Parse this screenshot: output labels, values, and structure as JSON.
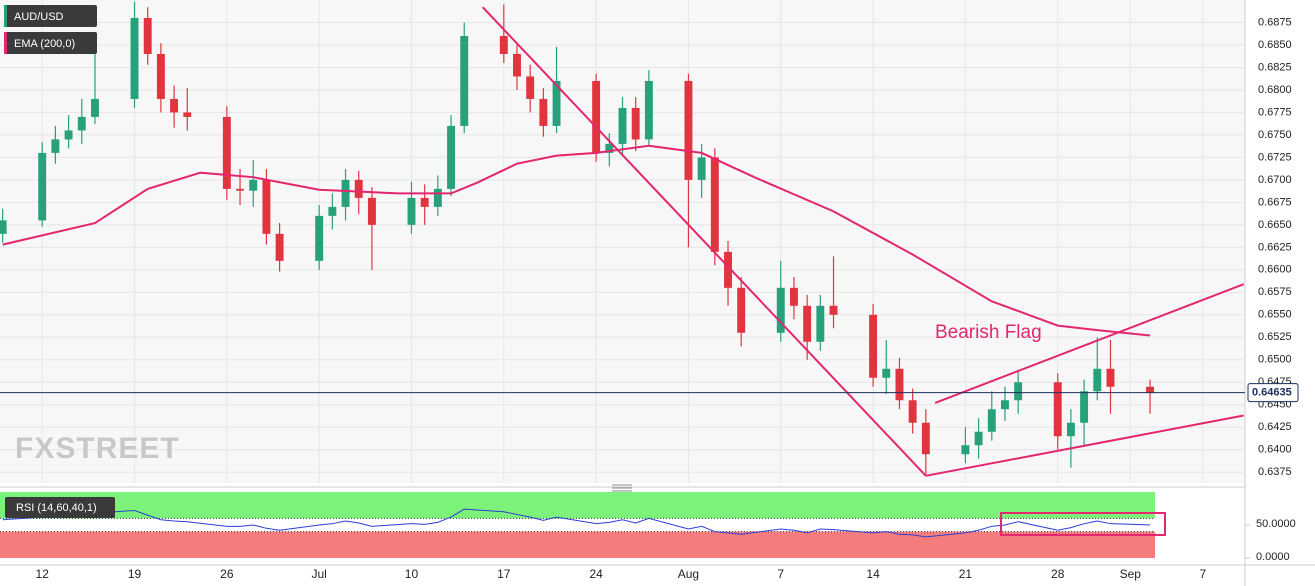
{
  "chart_data": [
    {
      "type": "candlestick",
      "title": "AUD/USD",
      "x": [
        -3,
        0,
        1,
        2,
        3,
        4,
        7,
        8,
        9,
        10,
        11,
        14,
        15,
        16,
        17,
        18,
        21,
        22,
        23,
        24,
        25,
        28,
        29,
        30,
        31,
        32,
        35,
        36,
        37,
        38,
        39,
        42,
        43,
        44,
        45,
        46,
        49,
        50,
        51,
        52,
        53,
        56,
        57,
        58,
        59,
        60,
        63,
        64,
        65,
        66,
        67,
        70,
        71,
        72,
        73,
        74,
        77,
        78,
        79,
        80,
        81,
        84
      ],
      "open": [
        0.664,
        0.6655,
        0.673,
        0.6745,
        0.6755,
        0.677,
        0.679,
        0.688,
        0.684,
        0.679,
        0.6775,
        0.677,
        0.669,
        0.6688,
        0.67,
        0.664,
        0.661,
        0.666,
        0.667,
        0.67,
        0.668,
        0.665,
        0.668,
        0.667,
        0.669,
        0.676,
        0.686,
        0.684,
        0.6815,
        0.679,
        0.676,
        0.681,
        0.673,
        0.674,
        0.678,
        0.6745,
        0.681,
        0.67,
        0.6725,
        0.662,
        0.658,
        0.653,
        0.658,
        0.656,
        0.652,
        0.656,
        0.655,
        0.648,
        0.649,
        0.6455,
        0.643,
        0.6395,
        0.6405,
        0.642,
        0.6445,
        0.6455,
        0.6475,
        0.6415,
        0.643,
        0.6465,
        0.649,
        0.647
      ],
      "high": [
        0.6668,
        0.6742,
        0.676,
        0.6772,
        0.679,
        0.685,
        0.6898,
        0.6892,
        0.6852,
        0.6805,
        0.6802,
        0.6782,
        0.6712,
        0.6722,
        0.6712,
        0.6652,
        0.6672,
        0.6685,
        0.6712,
        0.671,
        0.6692,
        0.6698,
        0.6695,
        0.6705,
        0.6772,
        0.6875,
        0.6895,
        0.685,
        0.6828,
        0.6802,
        0.6848,
        0.6818,
        0.6752,
        0.6792,
        0.6792,
        0.6822,
        0.6818,
        0.674,
        0.6735,
        0.6632,
        0.6592,
        0.661,
        0.6592,
        0.6572,
        0.6572,
        0.6615,
        0.6562,
        0.6522,
        0.6502,
        0.6468,
        0.6445,
        0.6425,
        0.6435,
        0.6465,
        0.647,
        0.6488,
        0.6485,
        0.6445,
        0.6478,
        0.6525,
        0.6522,
        0.6478
      ],
      "low": [
        0.663,
        0.6648,
        0.6718,
        0.6735,
        0.674,
        0.6762,
        0.678,
        0.6828,
        0.6775,
        0.6758,
        0.6755,
        0.6678,
        0.6672,
        0.667,
        0.6628,
        0.6598,
        0.66,
        0.6645,
        0.6655,
        0.6662,
        0.66,
        0.664,
        0.665,
        0.666,
        0.6682,
        0.6752,
        0.683,
        0.68,
        0.6775,
        0.6748,
        0.6752,
        0.672,
        0.6715,
        0.6728,
        0.6732,
        0.6738,
        0.6625,
        0.668,
        0.6605,
        0.656,
        0.6515,
        0.652,
        0.6545,
        0.65,
        0.651,
        0.6535,
        0.647,
        0.6462,
        0.6445,
        0.6418,
        0.6372,
        0.6385,
        0.639,
        0.641,
        0.6432,
        0.644,
        0.64,
        0.638,
        0.6405,
        0.6455,
        0.644,
        0.644
      ],
      "close": [
        0.6655,
        0.673,
        0.6745,
        0.6755,
        0.677,
        0.679,
        0.688,
        0.684,
        0.679,
        0.6775,
        0.677,
        0.669,
        0.6688,
        0.67,
        0.664,
        0.661,
        0.666,
        0.667,
        0.67,
        0.668,
        0.665,
        0.668,
        0.667,
        0.669,
        0.676,
        0.686,
        0.684,
        0.6815,
        0.679,
        0.676,
        0.681,
        0.673,
        0.674,
        0.678,
        0.6745,
        0.681,
        0.67,
        0.6725,
        0.662,
        0.658,
        0.653,
        0.658,
        0.656,
        0.652,
        0.656,
        0.655,
        0.648,
        0.649,
        0.6455,
        0.643,
        0.6395,
        0.6405,
        0.642,
        0.6445,
        0.6455,
        0.6475,
        0.6415,
        0.643,
        0.6465,
        0.649,
        0.647,
        0.6463
      ],
      "up_color": "#26a17b",
      "down_color": "#e2343f",
      "overlay": {
        "name": "EMA (200,0)",
        "color": "#e3266f",
        "x": [
          -3,
          4,
          8,
          12,
          16,
          21,
          27,
          31,
          33,
          36,
          39,
          42,
          46,
          50,
          54,
          60,
          66,
          72,
          77,
          80,
          84
        ],
        "values": [
          0.6628,
          0.6652,
          0.669,
          0.6708,
          0.6703,
          0.6689,
          0.6685,
          0.6685,
          0.6697,
          0.6718,
          0.6727,
          0.673,
          0.6738,
          0.673,
          0.6703,
          0.6665,
          0.6617,
          0.6565,
          0.6538,
          0.6533,
          0.6527
        ]
      },
      "last_price": 0.64635,
      "annotations": {
        "text": "Bearish Flag",
        "color": "#e3266f",
        "trendlines": [
          {
            "x": [
              33.4,
              67
            ],
            "y": [
              0.6892,
              0.6371
            ]
          },
          {
            "x": [
              67.7,
              91.1
            ],
            "y": [
              0.6452,
              0.6584
            ]
          },
          {
            "x": [
              67,
              91.1
            ],
            "y": [
              0.6371,
              0.6438
            ]
          }
        ]
      },
      "watermark": "FXSTREET",
      "xlim": [
        -3.2,
        91.2
      ],
      "ylim": [
        0.6363,
        0.69
      ],
      "xticks": [
        {
          "value": 0,
          "label": "12"
        },
        {
          "value": 7,
          "label": "19"
        },
        {
          "value": 14,
          "label": "26"
        },
        {
          "value": 21,
          "label": "Jul"
        },
        {
          "value": 28,
          "label": "10"
        },
        {
          "value": 35,
          "label": "17"
        },
        {
          "value": 42,
          "label": "24"
        },
        {
          "value": 49,
          "label": "Aug"
        },
        {
          "value": 56,
          "label": "7"
        },
        {
          "value": 63,
          "label": "14"
        },
        {
          "value": 70,
          "label": "21"
        },
        {
          "value": 77,
          "label": "28"
        },
        {
          "value": 82.5,
          "label": "Sep"
        },
        {
          "value": 88,
          "label": "7"
        }
      ],
      "yticks": [
        0.6375,
        {
          "value": 0.64,
          "label": "0.6400"
        },
        0.6425,
        {
          "value": 0.645,
          "label": "0.6450"
        },
        0.6475,
        {
          "value": 0.65,
          "label": "0.6500"
        },
        0.6525,
        {
          "value": 0.655,
          "label": "0.6550"
        },
        0.6575,
        {
          "value": 0.66,
          "label": "0.6600"
        },
        0.6625,
        {
          "value": 0.665,
          "label": "0.6650"
        },
        0.6675,
        {
          "value": 0.67,
          "label": "0.6700"
        },
        0.6725,
        {
          "value": 0.675,
          "label": "0.6750"
        },
        0.6775,
        {
          "value": 0.68,
          "label": "0.6800"
        },
        0.6825,
        {
          "value": 0.685,
          "label": "0.6850"
        },
        0.6875
      ],
      "grid": true
    },
    {
      "type": "line",
      "title": "RSI (14,60,40,1)",
      "color": "#2b3fd6",
      "x": [
        -3,
        0,
        1,
        2,
        3,
        4,
        7,
        8,
        9,
        10,
        11,
        14,
        15,
        16,
        17,
        18,
        21,
        22,
        23,
        24,
        25,
        28,
        29,
        30,
        31,
        32,
        35,
        36,
        37,
        38,
        39,
        42,
        43,
        44,
        45,
        46,
        49,
        50,
        51,
        52,
        53,
        56,
        57,
        58,
        59,
        60,
        63,
        64,
        65,
        66,
        67,
        70,
        71,
        72,
        73,
        74,
        77,
        78,
        79,
        80,
        81,
        84
      ],
      "values": [
        58,
        62,
        63,
        64,
        65,
        68,
        72,
        65,
        58,
        56,
        55,
        48,
        48,
        50,
        45,
        42,
        50,
        52,
        56,
        53,
        48,
        52,
        51,
        54,
        62,
        74,
        70,
        66,
        62,
        57,
        62,
        52,
        54,
        58,
        53,
        60,
        44,
        48,
        40,
        38,
        36,
        44,
        42,
        38,
        44,
        43,
        38,
        40,
        36,
        35,
        32,
        38,
        42,
        48,
        50,
        55,
        42,
        46,
        52,
        56,
        52,
        50
      ],
      "bands": {
        "upper": 60,
        "lower": 40,
        "upper_color": "#7cf27a",
        "lower_color": "#f47c7c"
      },
      "xlim": [
        -3.2,
        91.2
      ],
      "ylim": [
        0,
        100
      ],
      "yticks": [
        {
          "value": 50,
          "label": "50.0000"
        },
        {
          "value": 0,
          "label": "0.0000"
        }
      ]
    }
  ]
}
